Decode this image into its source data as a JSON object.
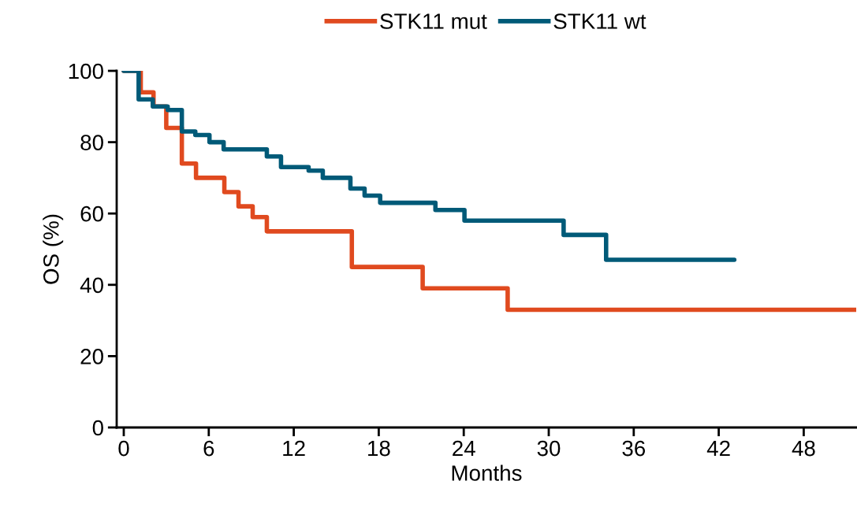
{
  "chart_data": {
    "type": "step",
    "xlabel": "Months",
    "ylabel": "OS (%)",
    "series": [
      {
        "name": "STK11 mut",
        "color": "#e04a1f",
        "x": [
          0,
          1.2,
          2.1,
          3.0,
          4.1,
          5.1,
          7.1,
          8.1,
          9.1,
          10.1,
          16.1,
          21.1,
          27.1,
          51.7
        ],
        "values": [
          100,
          94,
          90,
          84,
          74,
          70,
          66,
          62,
          59,
          55,
          45,
          39,
          33,
          33
        ]
      },
      {
        "name": "STK11 wt",
        "color": "#005a78",
        "x": [
          0,
          1.05,
          2.05,
          3.1,
          4.1,
          5.05,
          6.05,
          7.05,
          10.1,
          11.1,
          13.05,
          14.05,
          16.0,
          17.0,
          18.1,
          22.0,
          24.05,
          31.05,
          34.05,
          43.1
        ],
        "values": [
          100,
          92,
          90,
          89,
          83,
          82,
          80,
          78,
          76,
          73,
          72,
          70,
          67,
          65,
          63,
          61,
          58,
          54,
          47,
          47
        ]
      }
    ],
    "xlim": [
      -0.5,
      51.7
    ],
    "xticks": [
      0,
      6,
      12,
      18,
      24,
      30,
      36,
      42,
      48
    ],
    "ylim": [
      0,
      100
    ],
    "yticks": [
      0,
      20,
      40,
      60,
      80,
      100
    ],
    "grid": false,
    "legend": "top",
    "marker": "none",
    "line_style": "solid"
  }
}
